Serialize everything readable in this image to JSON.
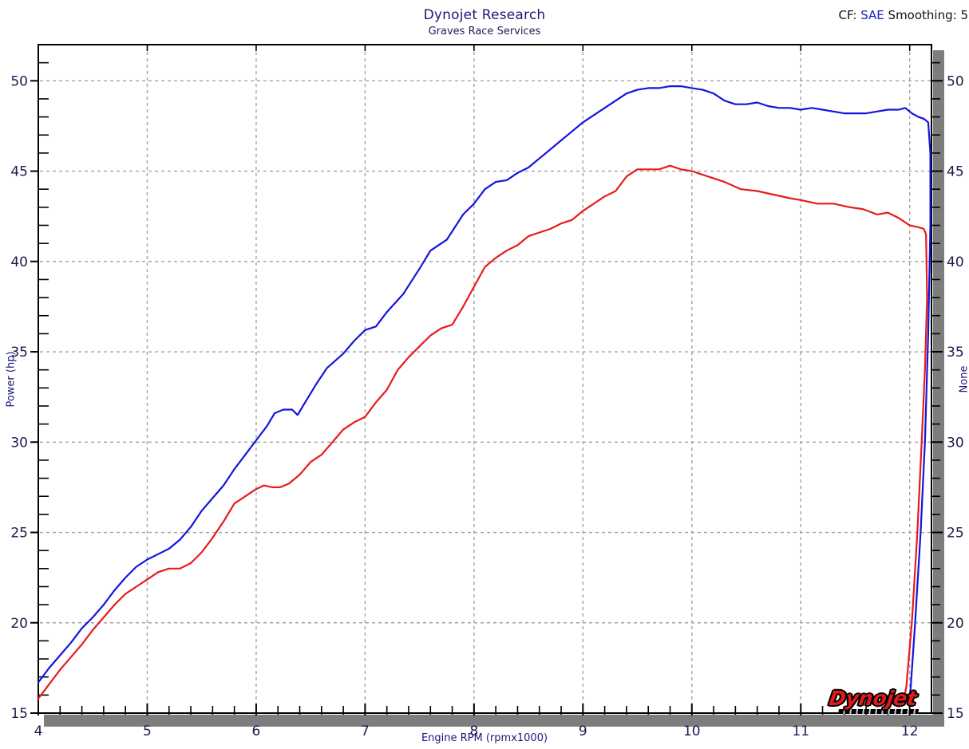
{
  "header": {
    "title": "Dynojet Research",
    "subtitle": "Graves Race Services",
    "cf_prefix": "CF: ",
    "cf_standard": "SAE",
    "cf_suffix": " Smoothing: 5"
  },
  "logo": {
    "text": "Dynojet"
  },
  "chart_data": {
    "type": "line",
    "title": "Dynojet Research",
    "subtitle": "Graves Race Services",
    "xlabel": "Engine RPM (rpmx1000)",
    "ylabel_left": "Power (hp)",
    "ylabel_right": "None",
    "xlim": [
      4,
      12.2
    ],
    "ylim": [
      15,
      52
    ],
    "x_major_ticks": [
      4,
      5,
      6,
      7,
      8,
      9,
      10,
      11,
      12
    ],
    "x_minor_step": 0.2,
    "y_major_ticks": [
      15,
      20,
      25,
      30,
      35,
      40,
      45,
      50
    ],
    "y_minor_step": 1,
    "grid": "dashed-major-both-axes",
    "legend": "none",
    "colors": {
      "grid": "#a2a2a2",
      "axis_border": "#000000",
      "shadow_bar": "#7d7d7d",
      "tick_label": "#1b1b4e",
      "blue_series": "#1414e0",
      "red_series": "#e81a1a"
    },
    "series": [
      {
        "name": "blue-run",
        "color": "#1414e0",
        "points": [
          [
            4.0,
            16.7
          ],
          [
            4.1,
            17.5
          ],
          [
            4.2,
            18.2
          ],
          [
            4.3,
            18.9
          ],
          [
            4.4,
            19.7
          ],
          [
            4.5,
            20.3
          ],
          [
            4.6,
            21.0
          ],
          [
            4.7,
            21.8
          ],
          [
            4.8,
            22.5
          ],
          [
            4.9,
            23.1
          ],
          [
            5.0,
            23.5
          ],
          [
            5.1,
            23.8
          ],
          [
            5.2,
            24.1
          ],
          [
            5.3,
            24.6
          ],
          [
            5.4,
            25.3
          ],
          [
            5.5,
            26.2
          ],
          [
            5.6,
            26.9
          ],
          [
            5.7,
            27.6
          ],
          [
            5.8,
            28.5
          ],
          [
            5.9,
            29.3
          ],
          [
            6.0,
            30.1
          ],
          [
            6.1,
            30.9
          ],
          [
            6.17,
            31.6
          ],
          [
            6.25,
            31.8
          ],
          [
            6.33,
            31.8
          ],
          [
            6.38,
            31.5
          ],
          [
            6.45,
            32.2
          ],
          [
            6.55,
            33.2
          ],
          [
            6.65,
            34.1
          ],
          [
            6.8,
            34.9
          ],
          [
            6.9,
            35.6
          ],
          [
            7.0,
            36.2
          ],
          [
            7.1,
            36.4
          ],
          [
            7.2,
            37.2
          ],
          [
            7.35,
            38.2
          ],
          [
            7.5,
            39.6
          ],
          [
            7.6,
            40.6
          ],
          [
            7.75,
            41.2
          ],
          [
            7.9,
            42.6
          ],
          [
            8.0,
            43.2
          ],
          [
            8.1,
            44.0
          ],
          [
            8.2,
            44.4
          ],
          [
            8.3,
            44.5
          ],
          [
            8.4,
            44.9
          ],
          [
            8.5,
            45.2
          ],
          [
            8.6,
            45.7
          ],
          [
            8.7,
            46.2
          ],
          [
            8.8,
            46.7
          ],
          [
            8.9,
            47.2
          ],
          [
            9.0,
            47.7
          ],
          [
            9.1,
            48.1
          ],
          [
            9.2,
            48.5
          ],
          [
            9.3,
            48.9
          ],
          [
            9.4,
            49.3
          ],
          [
            9.5,
            49.5
          ],
          [
            9.6,
            49.6
          ],
          [
            9.7,
            49.6
          ],
          [
            9.8,
            49.7
          ],
          [
            9.9,
            49.7
          ],
          [
            10.0,
            49.6
          ],
          [
            10.1,
            49.5
          ],
          [
            10.2,
            49.3
          ],
          [
            10.3,
            48.9
          ],
          [
            10.4,
            48.7
          ],
          [
            10.5,
            48.7
          ],
          [
            10.6,
            48.8
          ],
          [
            10.7,
            48.6
          ],
          [
            10.8,
            48.5
          ],
          [
            10.9,
            48.5
          ],
          [
            11.0,
            48.4
          ],
          [
            11.1,
            48.5
          ],
          [
            11.2,
            48.4
          ],
          [
            11.3,
            48.3
          ],
          [
            11.4,
            48.2
          ],
          [
            11.5,
            48.2
          ],
          [
            11.6,
            48.2
          ],
          [
            11.7,
            48.3
          ],
          [
            11.8,
            48.4
          ],
          [
            11.9,
            48.4
          ],
          [
            11.96,
            48.5
          ],
          [
            12.02,
            48.2
          ],
          [
            12.08,
            48.0
          ],
          [
            12.13,
            47.9
          ],
          [
            12.17,
            47.7
          ],
          [
            12.19,
            46.0
          ],
          [
            12.19,
            42.0
          ],
          [
            12.17,
            36.0
          ],
          [
            12.14,
            30.0
          ],
          [
            12.1,
            25.0
          ],
          [
            12.05,
            20.0
          ],
          [
            12.01,
            16.5
          ],
          [
            12.0,
            15.8
          ]
        ]
      },
      {
        "name": "red-run",
        "color": "#e81a1a",
        "points": [
          [
            4.0,
            15.8
          ],
          [
            4.1,
            16.6
          ],
          [
            4.2,
            17.4
          ],
          [
            4.3,
            18.1
          ],
          [
            4.4,
            18.8
          ],
          [
            4.5,
            19.6
          ],
          [
            4.6,
            20.3
          ],
          [
            4.7,
            21.0
          ],
          [
            4.8,
            21.6
          ],
          [
            4.9,
            22.0
          ],
          [
            5.0,
            22.4
          ],
          [
            5.1,
            22.8
          ],
          [
            5.2,
            23.0
          ],
          [
            5.3,
            23.0
          ],
          [
            5.4,
            23.3
          ],
          [
            5.5,
            23.9
          ],
          [
            5.6,
            24.7
          ],
          [
            5.7,
            25.6
          ],
          [
            5.8,
            26.6
          ],
          [
            5.9,
            27.0
          ],
          [
            6.0,
            27.4
          ],
          [
            6.07,
            27.6
          ],
          [
            6.15,
            27.5
          ],
          [
            6.22,
            27.5
          ],
          [
            6.3,
            27.7
          ],
          [
            6.4,
            28.2
          ],
          [
            6.5,
            28.9
          ],
          [
            6.6,
            29.3
          ],
          [
            6.7,
            30.0
          ],
          [
            6.8,
            30.7
          ],
          [
            6.9,
            31.1
          ],
          [
            7.0,
            31.4
          ],
          [
            7.1,
            32.2
          ],
          [
            7.2,
            32.9
          ],
          [
            7.3,
            34.0
          ],
          [
            7.4,
            34.7
          ],
          [
            7.5,
            35.3
          ],
          [
            7.6,
            35.9
          ],
          [
            7.7,
            36.3
          ],
          [
            7.8,
            36.5
          ],
          [
            7.9,
            37.5
          ],
          [
            8.0,
            38.6
          ],
          [
            8.1,
            39.7
          ],
          [
            8.2,
            40.2
          ],
          [
            8.3,
            40.6
          ],
          [
            8.4,
            40.9
          ],
          [
            8.5,
            41.4
          ],
          [
            8.6,
            41.6
          ],
          [
            8.7,
            41.8
          ],
          [
            8.8,
            42.1
          ],
          [
            8.9,
            42.3
          ],
          [
            9.0,
            42.8
          ],
          [
            9.1,
            43.2
          ],
          [
            9.2,
            43.6
          ],
          [
            9.3,
            43.9
          ],
          [
            9.4,
            44.7
          ],
          [
            9.5,
            45.1
          ],
          [
            9.6,
            45.1
          ],
          [
            9.7,
            45.1
          ],
          [
            9.8,
            45.3
          ],
          [
            9.9,
            45.1
          ],
          [
            10.0,
            45.0
          ],
          [
            10.1,
            44.8
          ],
          [
            10.2,
            44.6
          ],
          [
            10.3,
            44.4
          ],
          [
            10.45,
            44.0
          ],
          [
            10.6,
            43.9
          ],
          [
            10.75,
            43.7
          ],
          [
            10.9,
            43.5
          ],
          [
            11.0,
            43.4
          ],
          [
            11.15,
            43.2
          ],
          [
            11.3,
            43.2
          ],
          [
            11.45,
            43.0
          ],
          [
            11.57,
            42.9
          ],
          [
            11.7,
            42.6
          ],
          [
            11.8,
            42.7
          ],
          [
            11.9,
            42.4
          ],
          [
            12.0,
            42.0
          ],
          [
            12.08,
            41.9
          ],
          [
            12.13,
            41.8
          ],
          [
            12.15,
            41.5
          ],
          [
            12.16,
            38.0
          ],
          [
            12.14,
            34.0
          ],
          [
            12.11,
            30.0
          ],
          [
            12.07,
            25.0
          ],
          [
            12.02,
            20.0
          ],
          [
            11.97,
            16.5
          ],
          [
            11.94,
            15.5
          ]
        ]
      }
    ]
  }
}
